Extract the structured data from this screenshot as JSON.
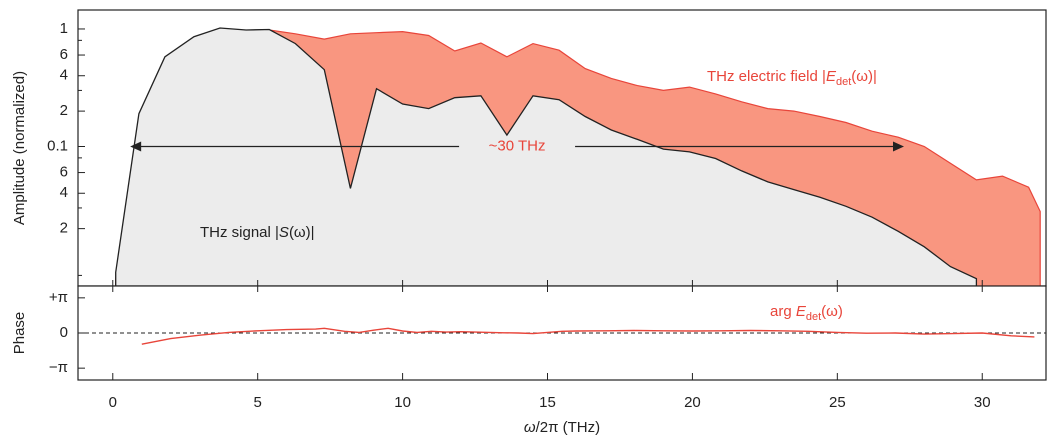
{
  "chart_data": [
    {
      "type": "area",
      "yscale": "log",
      "ylabel": "Amplitude (normalized)",
      "xlabel": "ω/2π (THz)",
      "xlim": [
        -1.2,
        32.2
      ],
      "ylim": [
        0.0065,
        1.45
      ],
      "grid": false,
      "ytick_labels": [
        {
          "v": 1,
          "t": "1"
        },
        {
          "v": 0.6,
          "t": "6"
        },
        {
          "v": 0.4,
          "t": "4"
        },
        {
          "v": 0.2,
          "t": "2"
        },
        {
          "v": 0.1,
          "t": "0.1"
        },
        {
          "v": 0.06,
          "t": "6"
        },
        {
          "v": 0.04,
          "t": "4"
        },
        {
          "v": 0.02,
          "t": "2"
        }
      ],
      "minor_ticks": [
        0.8,
        0.3,
        0.08,
        0.03,
        0.008
      ],
      "series": [
        {
          "name_parts": [
            "THz electric field |",
            "E",
            "det",
            "(ω)|"
          ],
          "color": "#f08c74",
          "x": [
            0.1,
            0.9,
            1.8,
            2.8,
            3.7,
            4.6,
            5.4,
            6.3,
            7.3,
            8.2,
            9.1,
            10.0,
            10.9,
            11.8,
            12.7,
            13.6,
            14.5,
            15.4,
            16.3,
            17.2,
            18.1,
            19.0,
            19.9,
            20.8,
            21.7,
            22.6,
            23.5,
            24.4,
            25.3,
            26.2,
            27.1,
            28.0,
            28.9,
            29.8,
            30.7,
            31.6,
            32.0
          ],
          "y": [
            0.0075,
            0.14,
            0.43,
            0.63,
            0.81,
            0.9,
            0.98,
            0.91,
            0.82,
            0.91,
            0.93,
            0.95,
            0.88,
            0.65,
            0.76,
            0.58,
            0.75,
            0.66,
            0.46,
            0.38,
            0.33,
            0.3,
            0.32,
            0.28,
            0.24,
            0.21,
            0.2,
            0.18,
            0.16,
            0.135,
            0.12,
            0.1,
            0.072,
            0.052,
            0.056,
            0.045,
            0.028
          ]
        },
        {
          "name_parts": [
            "THz signal |",
            "S",
            "(ω)|"
          ],
          "color": "#222222",
          "x": [
            0.1,
            0.9,
            1.8,
            2.8,
            3.7,
            4.6,
            5.4,
            6.3,
            7.3,
            8.2,
            9.1,
            10.0,
            10.9,
            11.8,
            12.7,
            13.6,
            14.5,
            15.4,
            16.3,
            17.2,
            18.1,
            19.0,
            19.9,
            20.8,
            21.7,
            22.6,
            23.5,
            24.4,
            25.3,
            26.2,
            27.1,
            28.0,
            28.9,
            29.8
          ],
          "y": [
            0.0085,
            0.19,
            0.58,
            0.86,
            1.02,
            0.98,
            0.99,
            0.75,
            0.45,
            0.044,
            0.31,
            0.23,
            0.21,
            0.26,
            0.27,
            0.125,
            0.27,
            0.25,
            0.18,
            0.138,
            0.115,
            0.095,
            0.09,
            0.079,
            0.062,
            0.05,
            0.043,
            0.037,
            0.031,
            0.025,
            0.019,
            0.014,
            0.0095,
            0.0075
          ]
        }
      ],
      "annotation": {
        "text": "~30 THz",
        "x_start": 0.6,
        "x_end": 27.3,
        "y": 0.1,
        "color": "#e8453a"
      }
    },
    {
      "type": "line",
      "ylabel": "Phase",
      "ylim": [
        -4.2,
        4.2
      ],
      "ytick_labels": [
        {
          "v": 3.14159,
          "t": "+π"
        },
        {
          "v": 0,
          "t": "0"
        },
        {
          "v": -3.14159,
          "t": "−π"
        }
      ],
      "zero_line": true,
      "series": [
        {
          "name_parts": [
            "arg ",
            "E",
            "det",
            "(ω)"
          ],
          "color": "#e8453a",
          "x": [
            1.0,
            2.0,
            3.0,
            4.0,
            5.0,
            6.0,
            7.0,
            7.3,
            8.0,
            8.5,
            9.0,
            9.5,
            10.0,
            10.5,
            11.0,
            11.5,
            12.0,
            12.5,
            13.0,
            13.5,
            14.0,
            14.5,
            15.0,
            15.5,
            16.0,
            17.0,
            18.0,
            19.0,
            20.0,
            21.0,
            22.0,
            23.0,
            24.0,
            25.0,
            26.0,
            27.0,
            28.0,
            29.0,
            30.0,
            31.0,
            31.8
          ],
          "y": [
            -1.0,
            -0.5,
            -0.2,
            0.05,
            0.2,
            0.3,
            0.35,
            0.42,
            0.15,
            0.05,
            0.25,
            0.42,
            0.18,
            0.05,
            0.15,
            0.08,
            0.12,
            0.08,
            0.05,
            0.02,
            0.0,
            -0.05,
            0.05,
            0.15,
            0.18,
            0.2,
            0.22,
            0.2,
            0.18,
            0.2,
            0.22,
            0.2,
            0.15,
            0.05,
            -0.02,
            0.0,
            -0.1,
            -0.05,
            0.0,
            -0.25,
            -0.35
          ]
        }
      ]
    }
  ],
  "x_axis": {
    "ticks": [
      0,
      5,
      10,
      15,
      20,
      25,
      30
    ]
  }
}
